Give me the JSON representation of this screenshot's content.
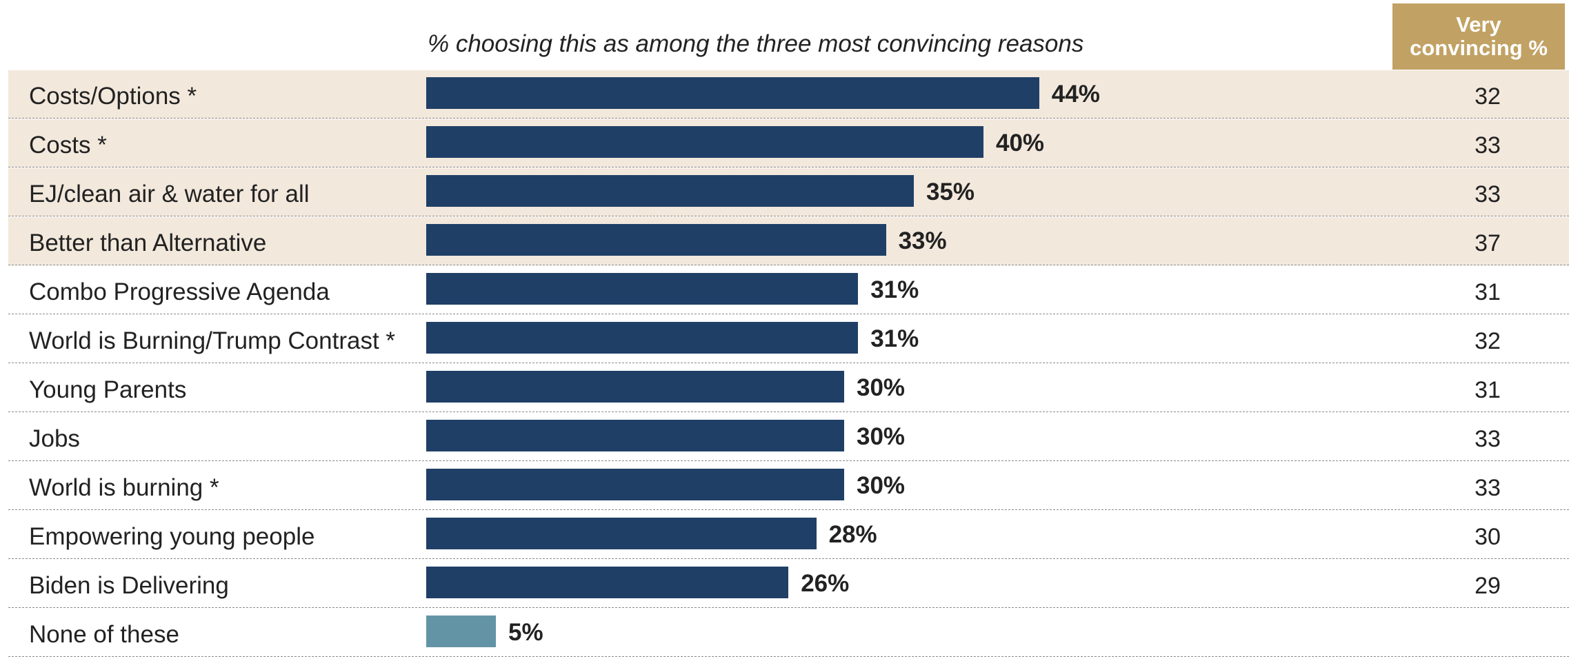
{
  "chart_data": {
    "type": "bar",
    "orientation": "horizontal",
    "title": "",
    "subtitle": "% choosing this as among the three most convincing reasons",
    "column_header": "Very\nconvincing %",
    "xlim": [
      0,
      100
    ],
    "grid": false,
    "categories": [
      "Costs/Options *",
      "Costs *",
      "EJ/clean air & water for all",
      "Better than Alternative",
      "Combo Progressive Agenda",
      "World is Burning/Trump Contrast *",
      "Young Parents",
      "Jobs",
      "World is burning *",
      "Empowering young people",
      "Biden is Delivering",
      "None of these"
    ],
    "values": [
      44,
      40,
      35,
      33,
      31,
      31,
      30,
      30,
      30,
      28,
      26,
      5
    ],
    "value_labels": [
      "44%",
      "40%",
      "35%",
      "33%",
      "31%",
      "31%",
      "30%",
      "30%",
      "30%",
      "28%",
      "26%",
      "5%"
    ],
    "very_convincing": [
      "32",
      "33",
      "33",
      "37",
      "31",
      "32",
      "31",
      "33",
      "33",
      "30",
      "29",
      ""
    ],
    "highlighted_rows": [
      0,
      1,
      2,
      3
    ],
    "colors": {
      "bar": "#1f3f66",
      "bar_none": "#6394a6",
      "highlight_row": "#f2e8dc",
      "header_bg": "#c1a264"
    }
  }
}
